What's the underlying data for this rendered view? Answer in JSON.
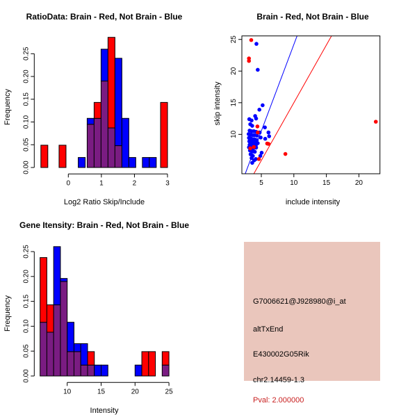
{
  "colors": {
    "red": "#FF0000",
    "blue": "#0000FF",
    "overlap": "#7A1C82",
    "axis": "#000000",
    "background": "#FFFFFF"
  },
  "chart_data": [
    {
      "type": "bar",
      "variant": "overlaid-histogram",
      "title": "RatioData: Brain - Red, Not Brain - Blue",
      "xlabel": "Log2 Ratio Skip/Include",
      "ylabel": "Frequency",
      "xticks": [
        0,
        1,
        2,
        3
      ],
      "xtick_labels": [
        "0",
        "1",
        "2",
        "3"
      ],
      "yticks": [
        0,
        0.05,
        0.1,
        0.15,
        0.2,
        0.25
      ],
      "ytick_labels": [
        "0.00",
        "0.05",
        "0.10",
        "0.15",
        "0.20",
        "0.25"
      ],
      "xlim": [
        -1.0,
        3.1
      ],
      "ylim": [
        0,
        0.29
      ],
      "grid": false,
      "legend": "none",
      "series": [
        {
          "name": "Not Brain",
          "color_key": "blue",
          "bars": [
            [
              0.3,
              0.51,
              0.022
            ],
            [
              0.57,
              0.78,
              0.108
            ],
            [
              0.78,
              0.99,
              0.108
            ],
            [
              0.99,
              1.2,
              0.26
            ],
            [
              1.2,
              1.41,
              0.087
            ],
            [
              1.41,
              1.62,
              0.24
            ],
            [
              1.62,
              1.83,
              0.108
            ],
            [
              1.83,
              2.04,
              0.022
            ],
            [
              2.24,
              2.45,
              0.022
            ],
            [
              2.45,
              2.66,
              0.022
            ]
          ]
        },
        {
          "name": "Brain",
          "color_key": "red",
          "bars": [
            [
              -0.83,
              -0.62,
              0.049
            ],
            [
              -0.28,
              -0.07,
              0.049
            ],
            [
              0.57,
              0.78,
              0.095
            ],
            [
              0.78,
              0.99,
              0.143
            ],
            [
              0.99,
              1.2,
              0.19
            ],
            [
              1.2,
              1.41,
              0.286
            ],
            [
              1.41,
              1.62,
              0.048
            ],
            [
              2.79,
              3.0,
              0.143
            ]
          ]
        }
      ]
    },
    {
      "type": "scatter",
      "title": "Brain - Red, Not Brain - Blue",
      "xlabel": "include intensity",
      "ylabel": "skip intensity",
      "xticks": [
        5,
        10,
        15,
        20
      ],
      "xtick_labels": [
        "5",
        "10",
        "15",
        "20"
      ],
      "yticks": [
        10,
        15,
        20,
        25
      ],
      "ytick_labels": [
        "10",
        "15",
        "20",
        "25"
      ],
      "xlim": [
        2.0,
        23.2
      ],
      "ylim": [
        3.8,
        25.6
      ],
      "grid": false,
      "legend": "none",
      "series": [
        {
          "name": "Not Brain",
          "color_key": "blue",
          "points": [
            [
              4.25,
              24.3
            ],
            [
              4.45,
              20.2
            ],
            [
              5.2,
              14.6
            ],
            [
              4.7,
              13.9
            ],
            [
              4.05,
              12.9
            ],
            [
              4.2,
              12.5
            ],
            [
              3.15,
              12.4
            ],
            [
              3.5,
              12.2
            ],
            [
              3.3,
              11.6
            ],
            [
              3.6,
              11.35
            ],
            [
              5.55,
              11.1
            ],
            [
              6.1,
              10.3
            ],
            [
              3.2,
              10.6
            ],
            [
              3.5,
              10.5
            ],
            [
              3.85,
              10.5
            ],
            [
              4.2,
              10.4
            ],
            [
              4.75,
              10.3
            ],
            [
              3.05,
              10.05
            ],
            [
              3.35,
              9.95
            ],
            [
              3.65,
              9.9
            ],
            [
              3.95,
              9.85
            ],
            [
              4.35,
              9.8
            ],
            [
              4.9,
              9.5
            ],
            [
              5.6,
              9.3
            ],
            [
              6.2,
              9.7
            ],
            [
              3.1,
              9.45
            ],
            [
              3.4,
              9.35
            ],
            [
              3.7,
              9.25
            ],
            [
              4.0,
              9.2
            ],
            [
              4.3,
              9.1
            ],
            [
              3.15,
              8.9
            ],
            [
              3.45,
              8.8
            ],
            [
              3.75,
              8.7
            ],
            [
              4.05,
              8.65
            ],
            [
              4.45,
              8.6
            ],
            [
              3.2,
              8.35
            ],
            [
              3.5,
              8.3
            ],
            [
              3.85,
              8.25
            ],
            [
              4.15,
              8.2
            ],
            [
              3.1,
              7.95
            ],
            [
              3.4,
              7.85
            ],
            [
              3.75,
              7.8
            ],
            [
              4.2,
              7.9
            ],
            [
              3.25,
              7.45
            ],
            [
              3.6,
              7.35
            ],
            [
              4.0,
              7.25
            ],
            [
              3.35,
              6.85
            ],
            [
              3.7,
              6.6
            ],
            [
              4.85,
              6.6
            ],
            [
              5.05,
              7.1
            ],
            [
              3.5,
              6.25
            ],
            [
              3.9,
              5.9
            ],
            [
              3.6,
              5.5
            ],
            [
              4.15,
              6.1
            ]
          ]
        },
        {
          "name": "Brain",
          "color_key": "red",
          "points": [
            [
              3.45,
              24.9
            ],
            [
              3.1,
              22.0
            ],
            [
              3.1,
              21.6
            ],
            [
              4.4,
              11.25
            ],
            [
              4.45,
              10.3
            ],
            [
              3.85,
              8.0
            ],
            [
              3.3,
              7.8
            ],
            [
              4.63,
              6.1
            ],
            [
              5.9,
              8.55
            ],
            [
              6.1,
              8.5
            ],
            [
              8.7,
              6.9
            ],
            [
              22.6,
              12.0
            ]
          ]
        }
      ],
      "lines": [
        {
          "name": "not-brain-fit",
          "color_key": "blue",
          "from": [
            2.53,
            3.78
          ],
          "to": [
            10.59,
            25.81
          ]
        },
        {
          "name": "brain-fit",
          "color_key": "red",
          "from": [
            3.85,
            3.78
          ],
          "to": [
            15.93,
            25.81
          ]
        }
      ]
    },
    {
      "type": "bar",
      "variant": "overlaid-histogram",
      "title": "Gene Itensity: Brain - Red, Not Brain - Blue",
      "xlabel": "Intensity",
      "ylabel": "Frequency",
      "xticks": [
        10,
        15,
        20,
        25
      ],
      "xtick_labels": [
        "10",
        "15",
        "20",
        "25"
      ],
      "yticks": [
        0,
        0.05,
        0.1,
        0.15,
        0.2,
        0.25
      ],
      "ytick_labels": [
        "0.00",
        "0.05",
        "0.10",
        "0.15",
        "0.20",
        "0.25"
      ],
      "xlim": [
        5.8,
        25.2
      ],
      "ylim": [
        0,
        0.27
      ],
      "grid": false,
      "legend": "none",
      "series": [
        {
          "name": "Not Brain",
          "color_key": "blue",
          "bars": [
            [
              6,
              7,
              0.108
            ],
            [
              7,
              8,
              0.088
            ],
            [
              8,
              9,
              0.26
            ],
            [
              9,
              10,
              0.196
            ],
            [
              10,
              11,
              0.108
            ],
            [
              11,
              12,
              0.065
            ],
            [
              12,
              13,
              0.065
            ],
            [
              13,
              14,
              0.022
            ],
            [
              14,
              15,
              0.022
            ],
            [
              15,
              16,
              0.022
            ],
            [
              20,
              21,
              0.022
            ],
            [
              24,
              25,
              0.022
            ]
          ]
        },
        {
          "name": "Brain",
          "color_key": "red",
          "bars": [
            [
              6,
              7,
              0.238
            ],
            [
              7,
              8,
              0.143
            ],
            [
              8,
              9,
              0.143
            ],
            [
              9,
              10,
              0.19
            ],
            [
              10,
              11,
              0.049
            ],
            [
              11,
              12,
              0.049
            ],
            [
              12,
              13,
              0.022
            ],
            [
              13,
              14,
              0.049
            ],
            [
              21,
              22,
              0.049
            ],
            [
              22,
              23,
              0.049
            ],
            [
              24,
              25,
              0.049
            ]
          ]
        }
      ]
    }
  ],
  "info_panel": {
    "bg": "#EAC6BC",
    "probe_id": "G7006621@J928980@i_at",
    "event_type": "altTxEnd",
    "gene_symbol": "E430002G05Rik",
    "location": "chr2.14459-1.3",
    "pval_text": "Pval: 2.000000",
    "pval_color": "#C81E1E"
  }
}
